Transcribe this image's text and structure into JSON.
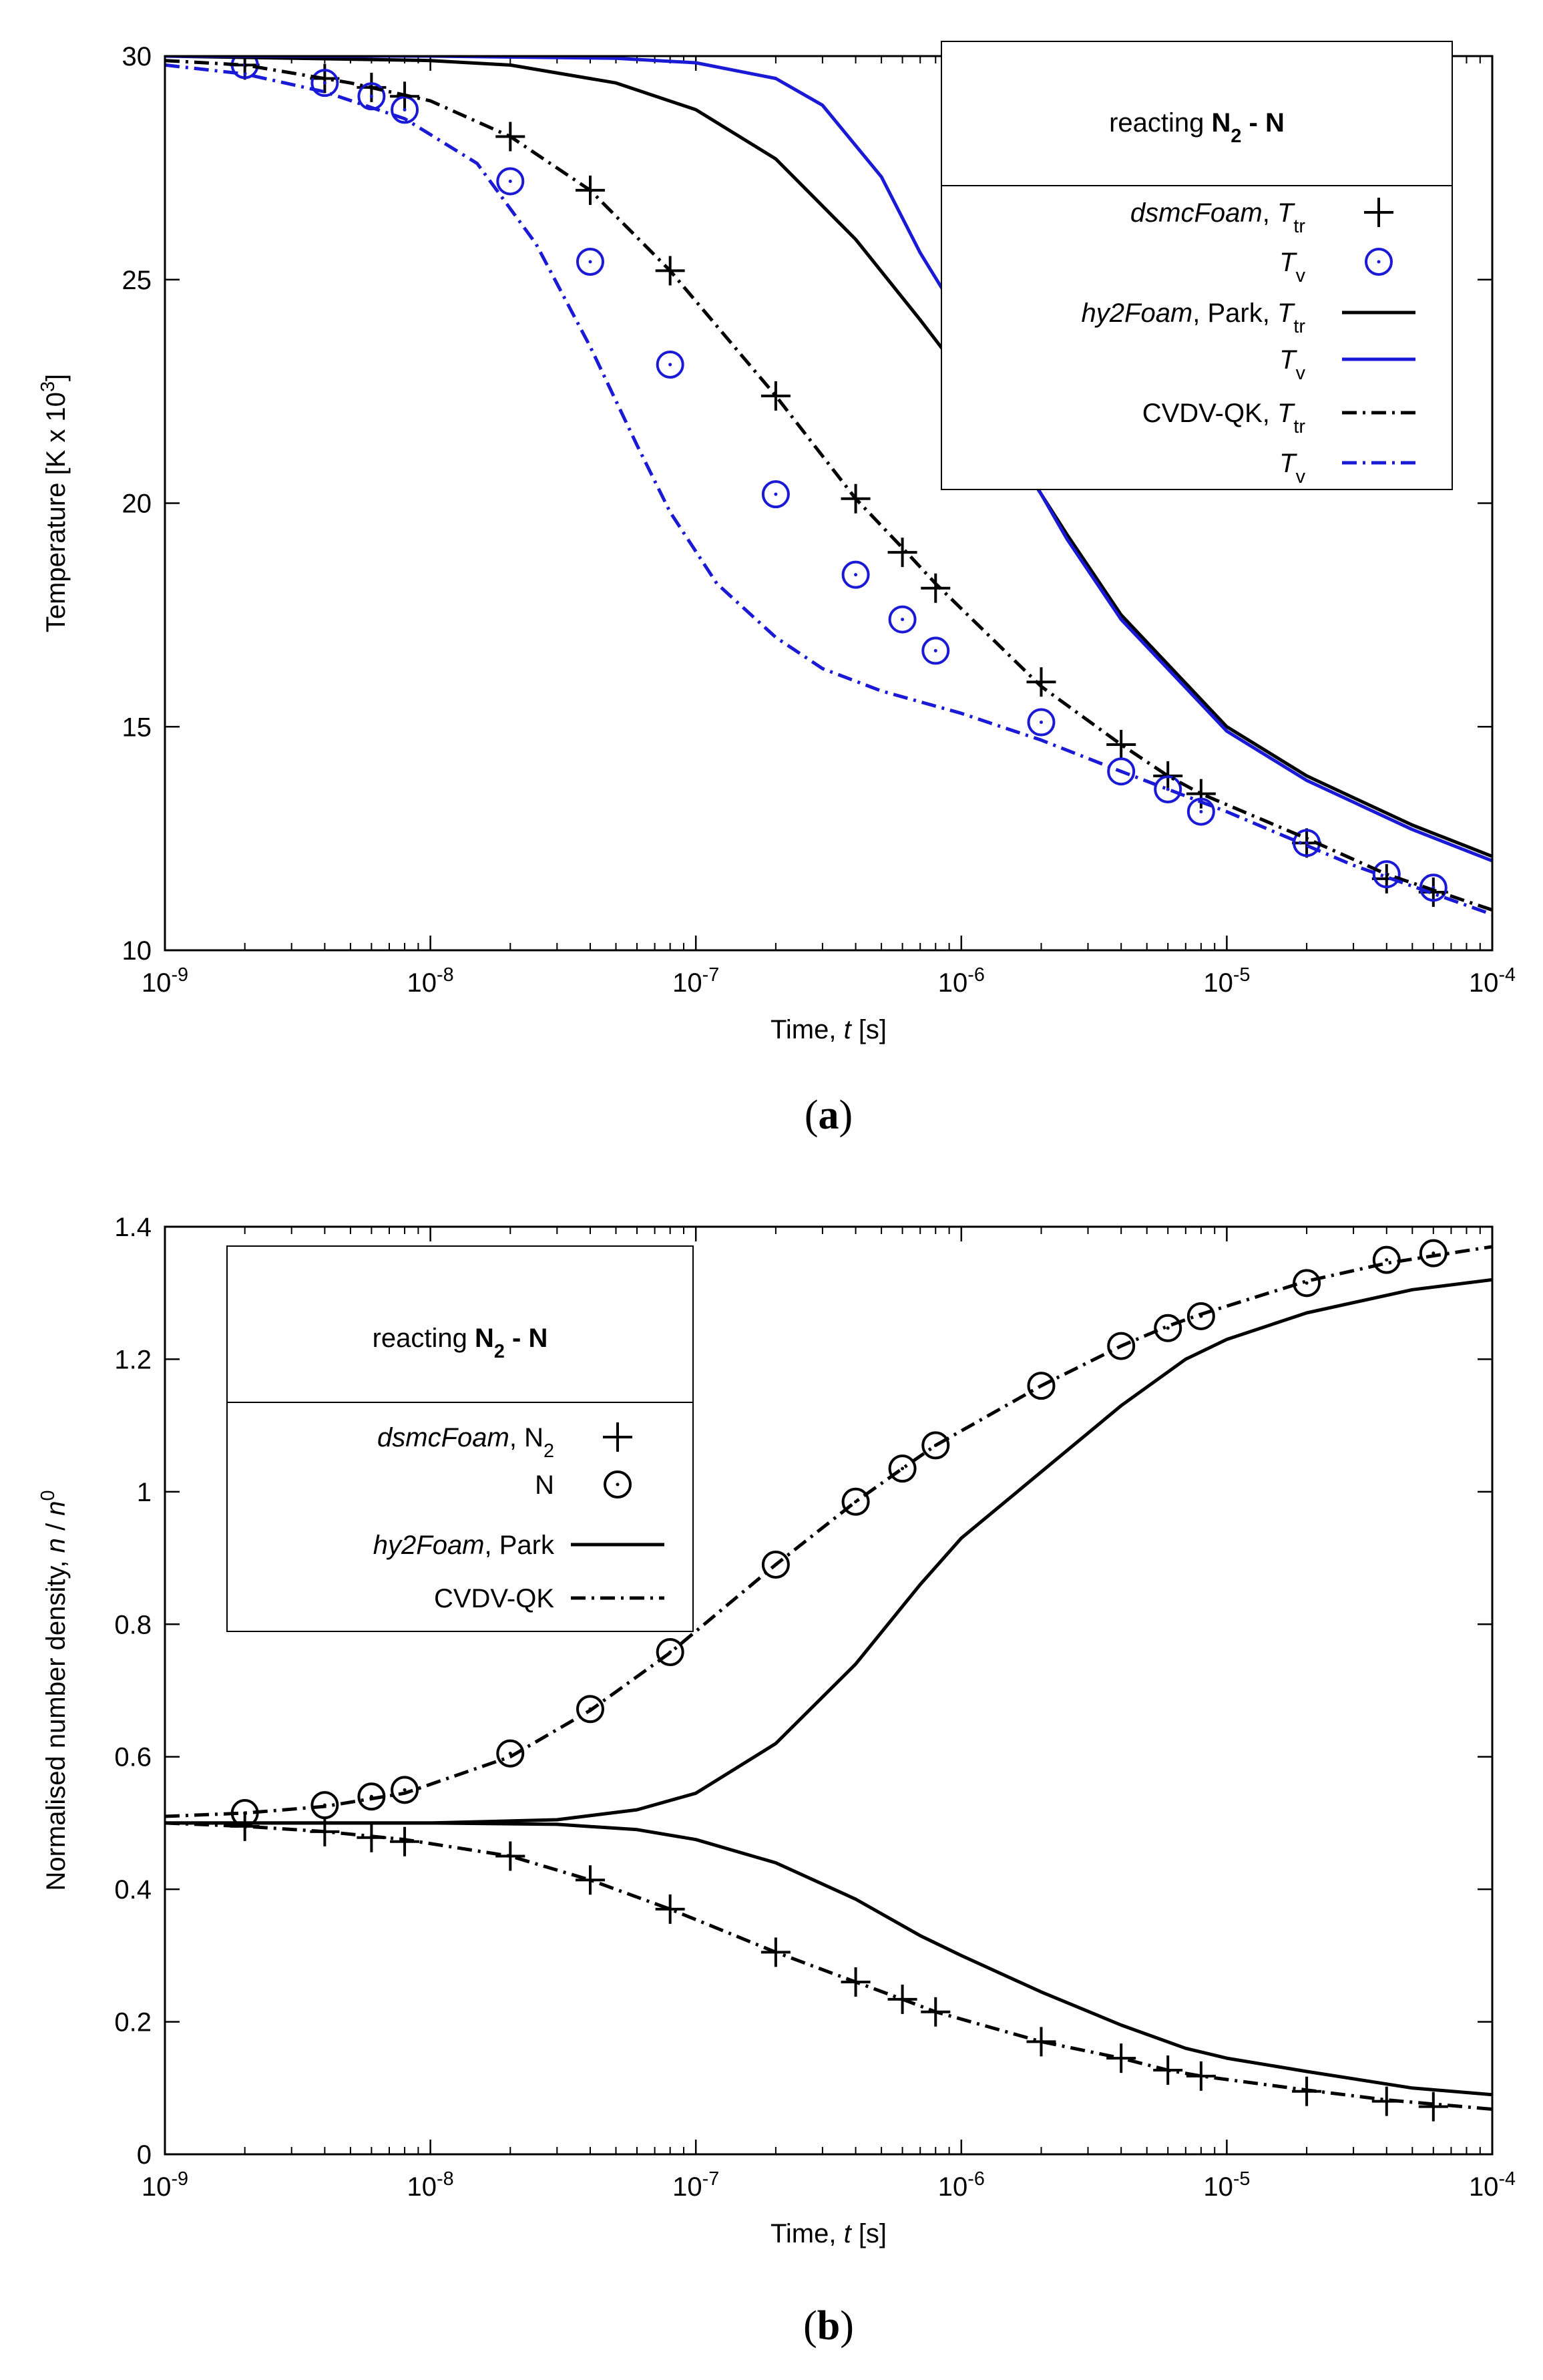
{
  "chart_data": [
    {
      "type": "line",
      "caption": "(a)",
      "xlabel": "Time, t [s]",
      "ylabel": "Temperature [K x 10^3]",
      "xscale": "log",
      "xlim": [
        1e-09,
        0.0001
      ],
      "ylim": [
        10,
        30
      ],
      "grid": false,
      "legend_position": "top-right",
      "legend_title": "reacting N2 - N",
      "xticks": [
        "10^-9",
        "10^-8",
        "10^-7",
        "10^-6",
        "10^-5",
        "10^-4"
      ],
      "yticks": [
        "10",
        "15",
        "20",
        "25",
        "30"
      ],
      "colors": {
        "black": "#000000",
        "blue": "#1a1ad6"
      },
      "series": [
        {
          "name": "dsmcFoam, T_tr",
          "legend": [
            "dsmcFoam",
            ", ",
            "T",
            "tr"
          ],
          "style": "markers",
          "marker": "plus",
          "color": "#000000",
          "x": [
            2e-09,
            4e-09,
            6e-09,
            8e-09,
            2e-08,
            4e-08,
            8e-08,
            2e-07,
            4e-07,
            6e-07,
            8e-07,
            2e-06,
            4e-06,
            6e-06,
            8e-06,
            2e-05,
            4e-05,
            6e-05
          ],
          "y": [
            29.8,
            29.5,
            29.3,
            29.1,
            28.2,
            27.0,
            25.2,
            22.4,
            20.1,
            18.9,
            18.1,
            16.0,
            14.6,
            13.9,
            13.5,
            12.4,
            11.6,
            11.3
          ]
        },
        {
          "name": "T_v",
          "legend": [
            "",
            "",
            "T",
            "v"
          ],
          "style": "markers",
          "marker": "circle",
          "color": "#1a1ad6",
          "x": [
            2e-09,
            4e-09,
            6e-09,
            8e-09,
            2e-08,
            4e-08,
            8e-08,
            2e-07,
            4e-07,
            6e-07,
            8e-07,
            2e-06,
            4e-06,
            6e-06,
            8e-06,
            2e-05,
            4e-05,
            6e-05
          ],
          "y": [
            29.8,
            29.4,
            29.1,
            28.8,
            27.2,
            25.4,
            23.1,
            20.2,
            18.4,
            17.4,
            16.7,
            15.1,
            14.0,
            13.6,
            13.1,
            12.4,
            11.7,
            11.4
          ]
        },
        {
          "name": "hy2Foam, Park, T_tr",
          "legend": [
            "hy2Foam",
            ", Park, ",
            "T",
            "tr"
          ],
          "style": "solid",
          "color": "#000000",
          "x": [
            1e-09,
            1e-08,
            2e-08,
            5e-08,
            1e-07,
            2e-07,
            4e-07,
            7e-07,
            1e-06,
            1.6e-06,
            2.5e-06,
            4e-06,
            1e-05,
            2e-05,
            5e-05,
            0.0001
          ],
          "y": [
            30.0,
            29.9,
            29.8,
            29.4,
            28.8,
            27.7,
            25.9,
            24.1,
            22.9,
            21.1,
            19.3,
            17.5,
            15.0,
            13.9,
            12.8,
            12.1
          ]
        },
        {
          "name": "T_v",
          "legend": [
            "",
            "",
            "T",
            "v"
          ],
          "style": "solid",
          "color": "#1a1ad6",
          "x": [
            1e-09,
            1e-08,
            5e-08,
            1e-07,
            2e-07,
            3e-07,
            5e-07,
            7e-07,
            1e-06,
            1.6e-06,
            2.5e-06,
            4e-06,
            1e-05,
            2e-05,
            5e-05,
            0.0001
          ],
          "y": [
            30.0,
            30.0,
            29.95,
            29.85,
            29.5,
            28.9,
            27.3,
            25.6,
            24.1,
            21.2,
            19.2,
            17.4,
            14.9,
            13.8,
            12.7,
            12.0
          ]
        },
        {
          "name": "CVDV-QK, T_tr",
          "legend": [
            "",
            "CVDV-QK, ",
            "T",
            "tr"
          ],
          "style": "dashdot",
          "color": "#000000",
          "x": [
            1e-09,
            2e-09,
            5e-09,
            1e-08,
            2e-08,
            4e-08,
            8e-08,
            2e-07,
            4e-07,
            6e-07,
            8e-07,
            2e-06,
            4e-06,
            6e-06,
            8e-06,
            2e-05,
            4e-05,
            0.0001
          ],
          "y": [
            29.9,
            29.8,
            29.4,
            29.0,
            28.2,
            27.0,
            25.2,
            22.4,
            20.1,
            19.0,
            18.2,
            15.9,
            14.6,
            13.9,
            13.5,
            12.5,
            11.7,
            10.9
          ]
        },
        {
          "name": "T_v",
          "legend": [
            "",
            "",
            "T",
            "v"
          ],
          "style": "dashdot",
          "color": "#1a1ad6",
          "x": [
            1e-09,
            2e-09,
            4e-09,
            8e-09,
            1.5e-08,
            2.5e-08,
            4e-08,
            6e-08,
            8e-08,
            1.2e-07,
            2e-07,
            3e-07,
            5e-07,
            1e-06,
            2e-06,
            4e-06,
            1e-05,
            3e-05,
            0.0001
          ],
          "y": [
            29.8,
            29.6,
            29.2,
            28.6,
            27.6,
            25.8,
            23.5,
            21.3,
            19.8,
            18.2,
            17.0,
            16.3,
            15.8,
            15.3,
            14.7,
            14.0,
            13.1,
            11.9,
            10.8
          ]
        }
      ]
    },
    {
      "type": "line",
      "caption": "(b)",
      "xlabel": "Time, t [s]",
      "ylabel": "Normalised number density, n / n^0",
      "xscale": "log",
      "xlim": [
        1e-09,
        0.0001
      ],
      "ylim": [
        0,
        1.4
      ],
      "grid": false,
      "legend_position": "top-left",
      "legend_title": "reacting N2 - N",
      "xticks": [
        "10^-9",
        "10^-8",
        "10^-7",
        "10^-6",
        "10^-5",
        "10^-4"
      ],
      "yticks": [
        "0",
        "0.2",
        "0.4",
        "0.6",
        "0.8",
        "1",
        "1.2",
        "1.4"
      ],
      "series": [
        {
          "name": "dsmcFoam, N2",
          "legend": [
            "dsmcFoam",
            ", N",
            "",
            "2"
          ],
          "style": "markers",
          "marker": "plus",
          "color": "#000000",
          "x": [
            2e-09,
            4e-09,
            6e-09,
            8e-09,
            2e-08,
            4e-08,
            8e-08,
            2e-07,
            4e-07,
            6e-07,
            8e-07,
            2e-06,
            4e-06,
            6e-06,
            8e-06,
            2e-05,
            4e-05,
            6e-05
          ],
          "y": [
            0.495,
            0.487,
            0.478,
            0.472,
            0.45,
            0.414,
            0.37,
            0.305,
            0.26,
            0.234,
            0.215,
            0.17,
            0.145,
            0.127,
            0.118,
            0.095,
            0.08,
            0.072
          ]
        },
        {
          "name": "N",
          "legend": [
            "",
            "N",
            "",
            ""
          ],
          "style": "markers",
          "marker": "circle",
          "color": "#000000",
          "x": [
            2e-09,
            4e-09,
            6e-09,
            8e-09,
            2e-08,
            4e-08,
            8e-08,
            2e-07,
            4e-07,
            6e-07,
            8e-07,
            2e-06,
            4e-06,
            6e-06,
            8e-06,
            2e-05,
            4e-05,
            6e-05
          ],
          "y": [
            0.515,
            0.527,
            0.54,
            0.55,
            0.605,
            0.672,
            0.758,
            0.89,
            0.985,
            1.035,
            1.07,
            1.16,
            1.22,
            1.247,
            1.265,
            1.315,
            1.35,
            1.36
          ]
        },
        {
          "name": "hy2Foam, Park",
          "legend": [
            "hy2Foam",
            ", Park",
            "",
            ""
          ],
          "style": "solid",
          "color": "#000000",
          "x": [
            1e-09,
            1e-08,
            3e-08,
            6e-08,
            1e-07,
            2e-07,
            4e-07,
            7e-07,
            1e-06,
            2e-06,
            4e-06,
            7e-06,
            1e-05,
            2e-05,
            5e-05,
            0.0001
          ],
          "y": [
            0.5,
            0.5,
            0.505,
            0.52,
            0.545,
            0.62,
            0.74,
            0.86,
            0.93,
            1.03,
            1.13,
            1.2,
            1.23,
            1.27,
            1.305,
            1.32
          ]
        },
        {
          "name": "hy2Foam, Park",
          "legend": null,
          "style": "solid",
          "color": "#000000",
          "x": [
            1e-09,
            1e-08,
            3e-08,
            6e-08,
            1e-07,
            2e-07,
            4e-07,
            7e-07,
            1e-06,
            2e-06,
            4e-06,
            7e-06,
            1e-05,
            2e-05,
            5e-05,
            0.0001
          ],
          "y": [
            0.5,
            0.5,
            0.498,
            0.49,
            0.475,
            0.44,
            0.385,
            0.33,
            0.3,
            0.245,
            0.195,
            0.16,
            0.145,
            0.125,
            0.1,
            0.09
          ]
        },
        {
          "name": "CVDV-QK",
          "legend": [
            "",
            "CVDV-QK",
            "",
            ""
          ],
          "style": "dashdot",
          "color": "#000000",
          "x": [
            1e-09,
            2e-09,
            4e-09,
            8e-09,
            2e-08,
            4e-08,
            8e-08,
            2e-07,
            4e-07,
            6e-07,
            8e-07,
            2e-06,
            4e-06,
            6e-06,
            8e-06,
            2e-05,
            4e-05,
            0.0001
          ],
          "y": [
            0.51,
            0.515,
            0.525,
            0.545,
            0.6,
            0.67,
            0.757,
            0.89,
            0.985,
            1.035,
            1.07,
            1.16,
            1.22,
            1.25,
            1.268,
            1.318,
            1.345,
            1.37
          ]
        },
        {
          "name": "CVDV-QK",
          "legend": null,
          "style": "dashdot",
          "color": "#000000",
          "x": [
            1e-09,
            2e-09,
            4e-09,
            8e-09,
            2e-08,
            4e-08,
            8e-08,
            2e-07,
            4e-07,
            6e-07,
            8e-07,
            2e-06,
            4e-06,
            6e-06,
            8e-06,
            2e-05,
            4e-05,
            0.0001
          ],
          "y": [
            0.5,
            0.495,
            0.487,
            0.475,
            0.45,
            0.414,
            0.37,
            0.305,
            0.26,
            0.234,
            0.215,
            0.17,
            0.145,
            0.127,
            0.118,
            0.097,
            0.082,
            0.068
          ]
        }
      ]
    }
  ]
}
